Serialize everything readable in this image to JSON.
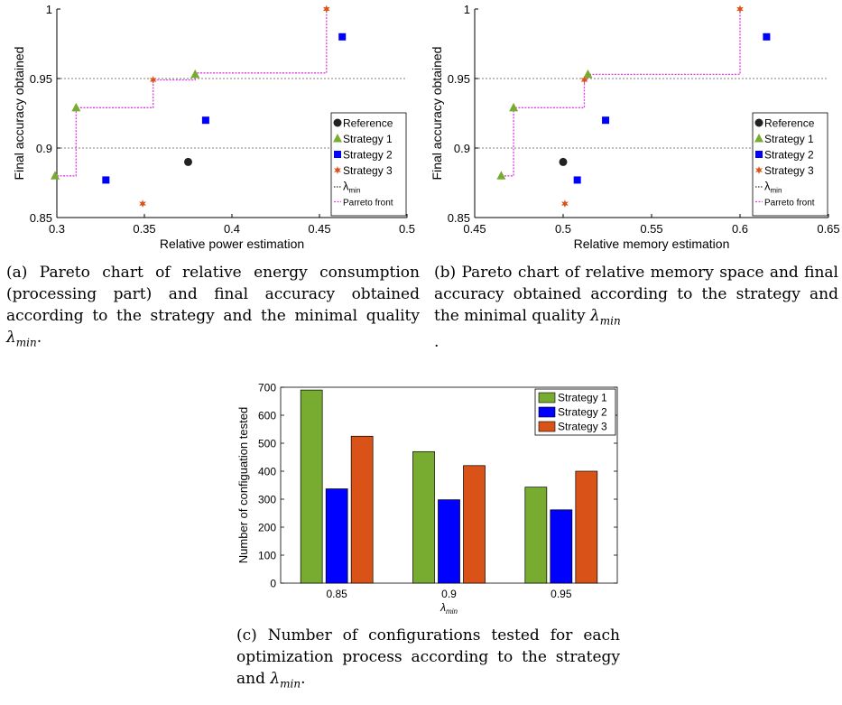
{
  "chart_data": [
    {
      "type": "scatter",
      "panel": "a",
      "xlabel": "Relative power estimation",
      "ylabel": "Final accuracy obtained",
      "xlim": [
        0.3,
        0.5
      ],
      "ylim": [
        0.85,
        1
      ],
      "xticks": [
        "0.3",
        "0.35",
        "0.4",
        "0.45",
        "0.5"
      ],
      "yticks": [
        "0.85",
        "0.9",
        "0.95",
        "1"
      ],
      "hlines": [
        0.9,
        0.95
      ],
      "series": [
        {
          "name": "Reference",
          "marker": "circle",
          "color": "#222222",
          "points": [
            [
              0.375,
              0.89
            ]
          ]
        },
        {
          "name": "Strategy 1",
          "marker": "triangle",
          "color": "#77AC30",
          "points": [
            [
              0.299,
              0.88
            ],
            [
              0.311,
              0.929
            ],
            [
              0.379,
              0.953
            ]
          ]
        },
        {
          "name": "Strategy 2",
          "marker": "square",
          "color": "#0000FF",
          "points": [
            [
              0.328,
              0.877
            ],
            [
              0.385,
              0.92
            ],
            [
              0.463,
              0.98
            ]
          ]
        },
        {
          "name": "Strategy 3",
          "marker": "star",
          "color": "#D95319",
          "points": [
            [
              0.349,
              0.86
            ],
            [
              0.355,
              0.949
            ],
            [
              0.454,
              1.0
            ]
          ]
        }
      ],
      "front": [
        [
          0.3,
          0.88
        ],
        [
          0.311,
          0.88
        ],
        [
          0.311,
          0.929
        ],
        [
          0.355,
          0.929
        ],
        [
          0.355,
          0.949
        ],
        [
          0.379,
          0.949
        ],
        [
          0.379,
          0.954
        ],
        [
          0.454,
          0.954
        ],
        [
          0.454,
          1.0
        ]
      ],
      "legend": {
        "placement": "lower-right",
        "entries": [
          "Reference",
          "Strategy 1",
          "Strategy 2",
          "Strategy 3",
          "λ",
          "Parreto front"
        ],
        "lambda_sub": "min"
      }
    },
    {
      "type": "scatter",
      "panel": "b",
      "xlabel": "Relative memory estimation",
      "ylabel": "Final accuracy obtained",
      "xlim": [
        0.45,
        0.65
      ],
      "ylim": [
        0.85,
        1
      ],
      "xticks": [
        "0.45",
        "0.5",
        "0.55",
        "0.6",
        "0.65"
      ],
      "yticks": [
        "0.85",
        "0.9",
        "0.95",
        "1"
      ],
      "hlines": [
        0.9,
        0.95
      ],
      "series": [
        {
          "name": "Reference",
          "marker": "circle",
          "color": "#222222",
          "points": [
            [
              0.5,
              0.89
            ]
          ]
        },
        {
          "name": "Strategy 1",
          "marker": "triangle",
          "color": "#77AC30",
          "points": [
            [
              0.465,
              0.88
            ],
            [
              0.472,
              0.929
            ],
            [
              0.514,
              0.953
            ]
          ]
        },
        {
          "name": "Strategy 2",
          "marker": "square",
          "color": "#0000FF",
          "points": [
            [
              0.508,
              0.877
            ],
            [
              0.524,
              0.92
            ],
            [
              0.615,
              0.98
            ]
          ]
        },
        {
          "name": "Strategy 3",
          "marker": "star",
          "color": "#D95319",
          "points": [
            [
              0.501,
              0.86
            ],
            [
              0.512,
              0.949
            ],
            [
              0.6,
              1.0
            ]
          ]
        }
      ],
      "front": [
        [
          0.465,
          0.88
        ],
        [
          0.472,
          0.88
        ],
        [
          0.472,
          0.929
        ],
        [
          0.512,
          0.929
        ],
        [
          0.512,
          0.949
        ],
        [
          0.514,
          0.949
        ],
        [
          0.514,
          0.953
        ],
        [
          0.6,
          0.953
        ],
        [
          0.6,
          1.0
        ]
      ],
      "legend": {
        "placement": "lower-right",
        "entries": [
          "Reference",
          "Strategy 1",
          "Strategy 2",
          "Strategy 3",
          "λ",
          "Parreto front"
        ],
        "lambda_sub": "min"
      }
    },
    {
      "type": "bar",
      "panel": "c",
      "categories": [
        "0.85",
        "0.9",
        "0.95"
      ],
      "xlabel": "λ",
      "xlabel_sub": "min",
      "ylabel": "Number of configuation tested",
      "ylim": [
        0,
        700
      ],
      "yticks": [
        "0",
        "100",
        "200",
        "300",
        "400",
        "500",
        "600",
        "700"
      ],
      "series": [
        {
          "name": "Strategy 1",
          "color": "#77AC30",
          "values": [
            690,
            470,
            343
          ]
        },
        {
          "name": "Strategy 2",
          "color": "#0000FF",
          "values": [
            337,
            298,
            262
          ]
        },
        {
          "name": "Strategy 3",
          "color": "#D95319",
          "values": [
            525,
            420,
            400
          ]
        }
      ],
      "legend": {
        "placement": "top-right",
        "entries": [
          "Strategy 1",
          "Strategy 2",
          "Strategy 3"
        ]
      }
    }
  ],
  "captions": {
    "a": {
      "text": "(a) Pareto chart of relative energy consumption (processing part) and final accuracy obtained according to the strategy and the minimal quality ",
      "sym": "λ",
      "sub": "min",
      "tail": "."
    },
    "b": {
      "text": "(b) Pareto chart of relative memory space and final accuracy obtained according to the strategy and the minimal quality ",
      "sym": "λ",
      "sub": "min",
      "tail": "."
    },
    "c": {
      "text": "(c) Number of configurations tested for each optimization process according to the strategy and ",
      "sym": "λ",
      "sub": "min",
      "tail": "."
    }
  }
}
